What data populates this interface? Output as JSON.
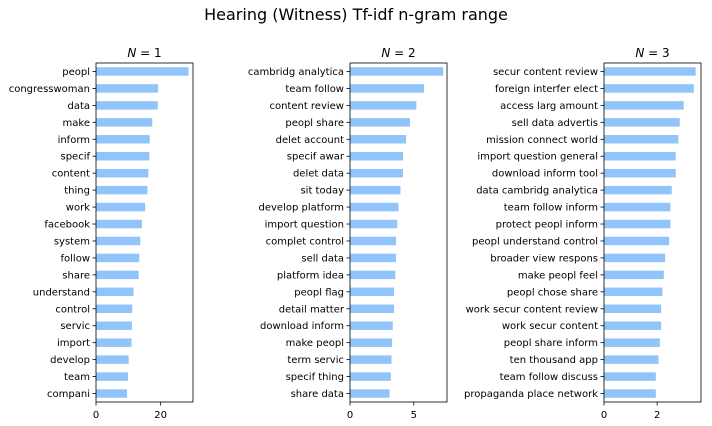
{
  "title": "Hearing (Witness) Tf-idf n-gram range",
  "chart_data": [
    {
      "type": "bar",
      "orientation": "horizontal",
      "title_var": "N",
      "title_value": "1",
      "bar_color": "#90c4fa",
      "xlim": [
        0,
        30
      ],
      "xticks": [
        0,
        20
      ],
      "categories": [
        "peopl",
        "congresswoman",
        "data",
        "make",
        "inform",
        "specif",
        "content",
        "thing",
        "work",
        "facebook",
        "system",
        "follow",
        "share",
        "understand",
        "control",
        "servic",
        "import",
        "develop",
        "team",
        "compani"
      ],
      "values": [
        28.6,
        19.2,
        19.1,
        17.4,
        16.6,
        16.5,
        16.2,
        15.9,
        15.2,
        14.2,
        13.7,
        13.4,
        13.2,
        11.6,
        11.2,
        11.1,
        11.0,
        10.1,
        9.9,
        9.6
      ]
    },
    {
      "type": "bar",
      "orientation": "horizontal",
      "title_var": "N",
      "title_value": "2",
      "bar_color": "#90c4fa",
      "xlim": [
        0,
        7.6
      ],
      "xticks": [
        0,
        5
      ],
      "categories": [
        "cambridg analytica",
        "team follow",
        "content review",
        "peopl share",
        "delet account",
        "specif awar",
        "delet data",
        "sit today",
        "develop platform",
        "import question",
        "complet control",
        "sell data",
        "platform idea",
        "peopl flag",
        "detail matter",
        "download inform",
        "make peopl",
        "term servic",
        "specif thing",
        "share data"
      ],
      "values": [
        7.3,
        5.8,
        5.2,
        4.7,
        4.4,
        4.15,
        4.15,
        3.95,
        3.8,
        3.7,
        3.6,
        3.6,
        3.55,
        3.45,
        3.45,
        3.35,
        3.3,
        3.25,
        3.2,
        3.1
      ]
    },
    {
      "type": "bar",
      "orientation": "horizontal",
      "title_var": "N",
      "title_value": "3",
      "bar_color": "#90c4fa",
      "xlim": [
        0,
        3.65
      ],
      "xticks": [
        0,
        2
      ],
      "categories": [
        "secur content review",
        "foreign interfer elect",
        "access larg amount",
        "sell data advertis",
        "mission connect world",
        "import question general",
        "download inform tool",
        "data cambridg analytica",
        "team follow inform",
        "protect peopl inform",
        "peopl understand control",
        "broader view respons",
        "make peopl feel",
        "peopl chose share",
        "work secur content review",
        "work secur content",
        "peopl share inform",
        "ten thousand app",
        "team follow discuss",
        "propaganda place network"
      ],
      "values": [
        3.45,
        3.38,
        3.0,
        2.85,
        2.8,
        2.7,
        2.7,
        2.55,
        2.5,
        2.5,
        2.45,
        2.3,
        2.25,
        2.2,
        2.15,
        2.15,
        2.1,
        2.05,
        1.95,
        1.95
      ]
    }
  ]
}
